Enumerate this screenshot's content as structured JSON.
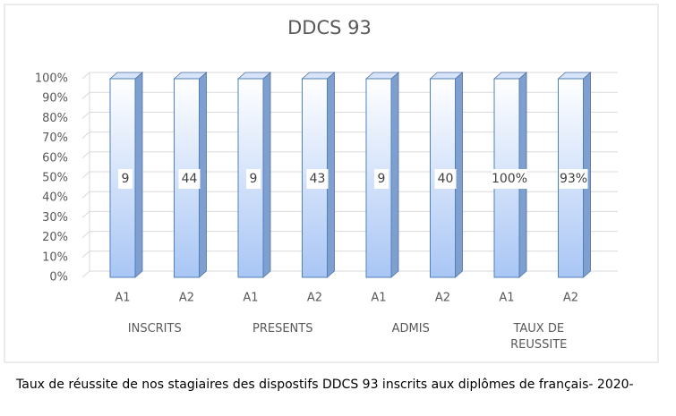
{
  "chart_data": {
    "type": "bar",
    "stacked_percent": true,
    "title": "DDCS 93",
    "categories": [
      "A1",
      "A2",
      "A1",
      "A2",
      "A1",
      "A2",
      "A1",
      "A2"
    ],
    "groups": [
      "INSCRITS",
      "PRESENTS",
      "ADMIS",
      "TAUX DE REUSSITE"
    ],
    "values": [
      9,
      44,
      9,
      43,
      9,
      40,
      100,
      93
    ],
    "value_labels": [
      "9",
      "44",
      "9",
      "43",
      "9",
      "40",
      "100%",
      "93%"
    ],
    "color": "#a9c6f5",
    "ylim": [
      0,
      100
    ],
    "yticks": [
      {
        "value": 0,
        "label": "0%"
      },
      {
        "value": 10,
        "label": "10%"
      },
      {
        "value": 20,
        "label": "20%"
      },
      {
        "value": 30,
        "label": "30%"
      },
      {
        "value": 40,
        "label": "40%"
      },
      {
        "value": 50,
        "label": "50%"
      },
      {
        "value": 60,
        "label": "60%"
      },
      {
        "value": 70,
        "label": "70%"
      },
      {
        "value": 80,
        "label": "80%"
      },
      {
        "value": 90,
        "label": "90%"
      },
      {
        "value": 100,
        "label": "100%"
      }
    ],
    "grid": true,
    "caption": "Taux de réussite de nos stagiaires des dispostifs DDCS 93 inscrits aux diplômes de français- 2020-"
  }
}
